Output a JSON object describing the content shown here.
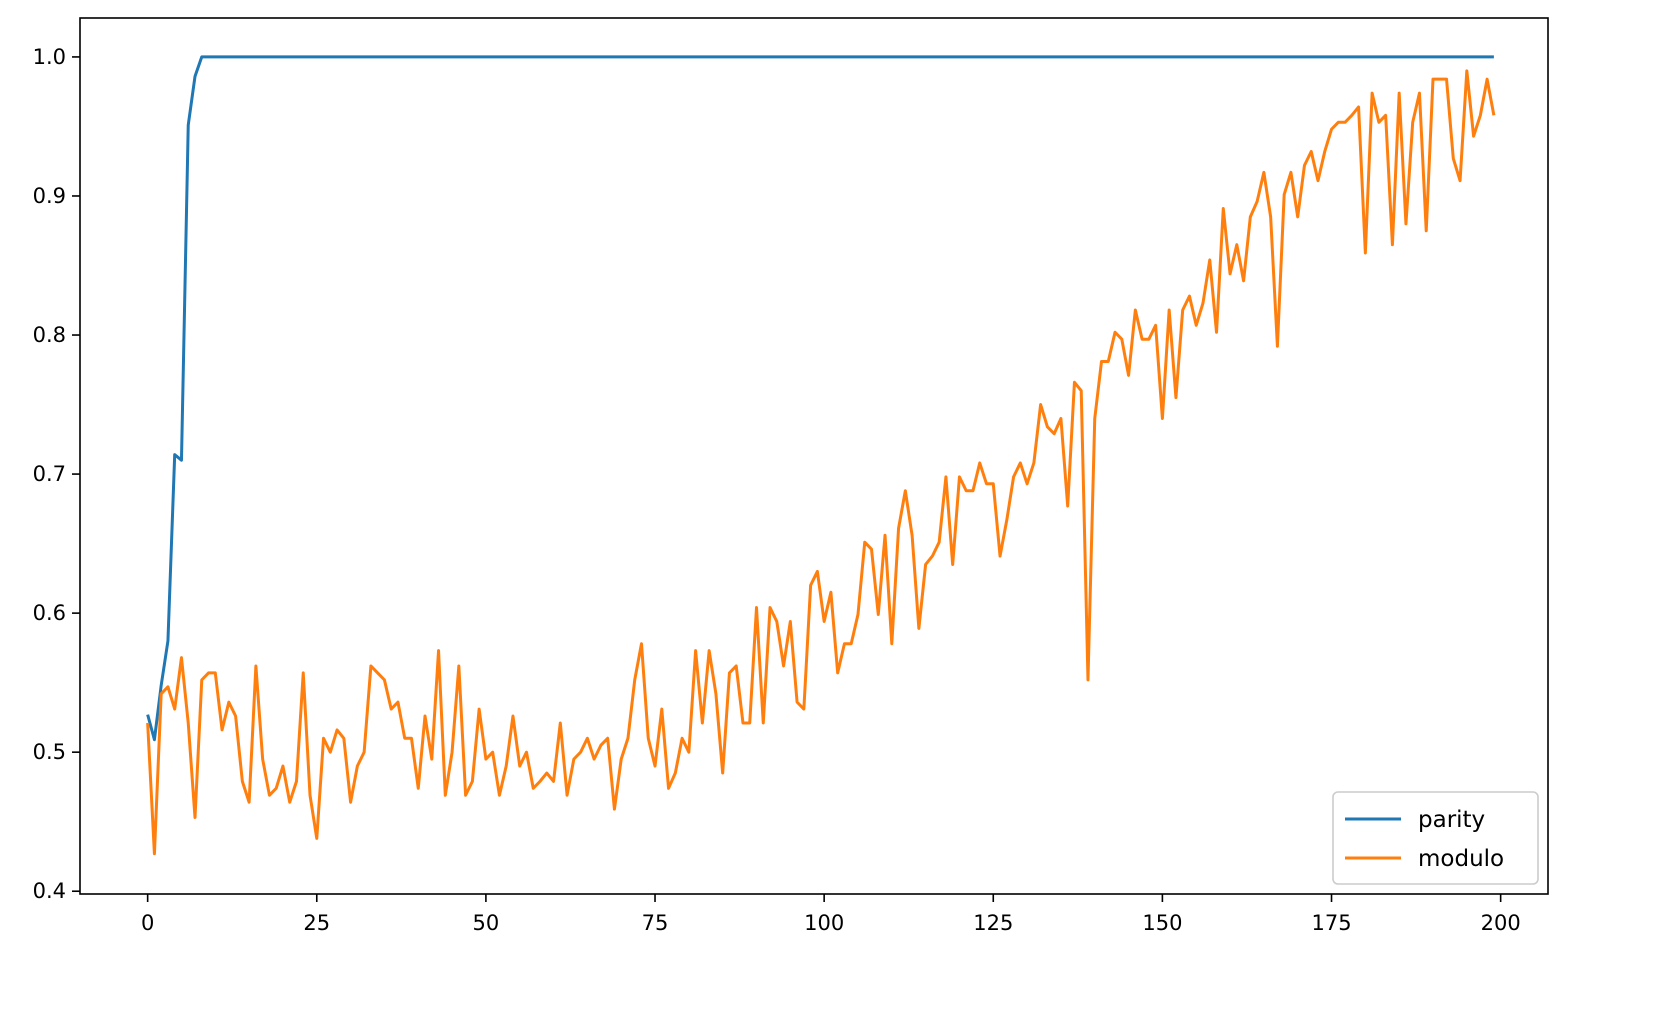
{
  "chart_data": {
    "type": "line",
    "title": "",
    "xlabel": "",
    "ylabel": "",
    "xlim": [
      -10,
      207
    ],
    "ylim": [
      0.398,
      1.028
    ],
    "xticks": [
      0,
      25,
      50,
      75,
      100,
      125,
      150,
      175,
      200
    ],
    "xtick_labels": [
      "0",
      "25",
      "50",
      "75",
      "100",
      "125",
      "150",
      "175",
      "200"
    ],
    "yticks": [
      0.4,
      0.5,
      0.6,
      0.7,
      0.8,
      0.9,
      1.0
    ],
    "ytick_labels": [
      "0.4",
      "0.5",
      "0.6",
      "0.7",
      "0.8",
      "0.9",
      "1.0"
    ],
    "grid": false,
    "legend_position": "lower-right",
    "series": [
      {
        "name": "parity",
        "color": "#1f77b4",
        "x": [
          0,
          1,
          2,
          3,
          4,
          5,
          6,
          7,
          8,
          9,
          199
        ],
        "values": [
          0.527,
          0.509,
          0.548,
          0.58,
          0.714,
          0.71,
          0.951,
          0.986,
          1.0,
          1.0,
          1.0
        ]
      },
      {
        "name": "modulo",
        "color": "#ff7f0e",
        "values": [
          0.521,
          0.427,
          0.542,
          0.547,
          0.531,
          0.568,
          0.521,
          0.453,
          0.552,
          0.557,
          0.557,
          0.516,
          0.536,
          0.526,
          0.479,
          0.464,
          0.562,
          0.495,
          0.469,
          0.474,
          0.49,
          0.464,
          0.479,
          0.557,
          0.469,
          0.438,
          0.51,
          0.5,
          0.516,
          0.51,
          0.464,
          0.49,
          0.5,
          0.562,
          0.557,
          0.552,
          0.531,
          0.536,
          0.51,
          0.51,
          0.474,
          0.526,
          0.495,
          0.573,
          0.469,
          0.5,
          0.562,
          0.469,
          0.479,
          0.531,
          0.495,
          0.5,
          0.469,
          0.49,
          0.526,
          0.49,
          0.5,
          0.474,
          0.479,
          0.485,
          0.479,
          0.521,
          0.469,
          0.495,
          0.5,
          0.51,
          0.495,
          0.505,
          0.51,
          0.459,
          0.495,
          0.51,
          0.552,
          0.578,
          0.51,
          0.49,
          0.531,
          0.474,
          0.485,
          0.51,
          0.5,
          0.573,
          0.521,
          0.573,
          0.542,
          0.485,
          0.557,
          0.562,
          0.521,
          0.521,
          0.604,
          0.521,
          0.604,
          0.594,
          0.562,
          0.594,
          0.536,
          0.531,
          0.62,
          0.63,
          0.594,
          0.615,
          0.557,
          0.578,
          0.578,
          0.599,
          0.651,
          0.646,
          0.599,
          0.656,
          0.578,
          0.661,
          0.688,
          0.656,
          0.589,
          0.635,
          0.641,
          0.651,
          0.698,
          0.635,
          0.698,
          0.688,
          0.688,
          0.708,
          0.693,
          0.693,
          0.641,
          0.667,
          0.698,
          0.708,
          0.693,
          0.708,
          0.75,
          0.734,
          0.729,
          0.74,
          0.677,
          0.766,
          0.76,
          0.552,
          0.74,
          0.781,
          0.781,
          0.802,
          0.797,
          0.771,
          0.818,
          0.797,
          0.797,
          0.807,
          0.74,
          0.818,
          0.755,
          0.818,
          0.828,
          0.807,
          0.823,
          0.854,
          0.802,
          0.891,
          0.844,
          0.865,
          0.839,
          0.885,
          0.896,
          0.917,
          0.885,
          0.792,
          0.901,
          0.917,
          0.885,
          0.922,
          0.932,
          0.911,
          0.932,
          0.948,
          0.953,
          0.953,
          0.958,
          0.964,
          0.859,
          0.974,
          0.953,
          0.958,
          0.865,
          0.974,
          0.88,
          0.953,
          0.974,
          0.875,
          0.984,
          0.984,
          0.984,
          0.927,
          0.911,
          0.99,
          0.943,
          0.958,
          0.984,
          0.958
        ]
      }
    ]
  }
}
